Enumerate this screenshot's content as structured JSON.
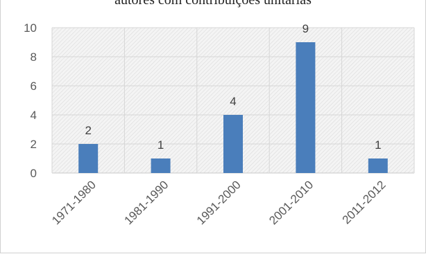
{
  "chart_data": {
    "type": "bar",
    "title": "autores com contribuições unitárias",
    "categories": [
      "1971-1980",
      "1981-1990",
      "1991-2000",
      "2001-2010",
      "2011-2012"
    ],
    "values": [
      2,
      1,
      4,
      9,
      1
    ],
    "data_labels": [
      "2",
      "1",
      "4",
      "9",
      "1"
    ],
    "ylim": [
      0,
      10
    ],
    "yticks": [
      "0",
      "2",
      "4",
      "6",
      "8",
      "10"
    ],
    "xlabel": "",
    "ylabel": "",
    "grid": true,
    "bar_color": "#4a7ebb",
    "legend": "none"
  }
}
